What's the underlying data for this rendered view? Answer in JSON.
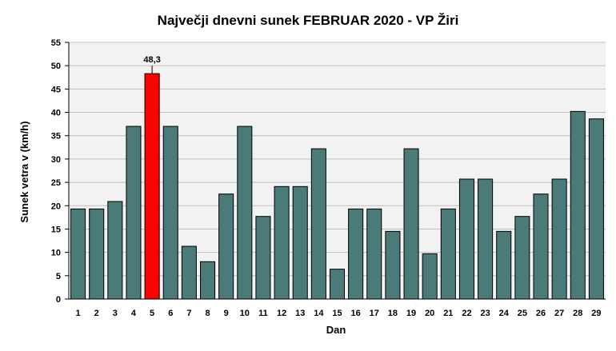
{
  "chart_data": {
    "type": "bar",
    "title": "Največji dnevni sunek FEBRUAR 2020 - VP Žiri",
    "xlabel": "Dan",
    "ylabel": "Sunek vetra  v (km/h)",
    "categories": [
      "1",
      "2",
      "3",
      "4",
      "5",
      "6",
      "7",
      "8",
      "9",
      "10",
      "11",
      "12",
      "13",
      "14",
      "15",
      "16",
      "17",
      "18",
      "19",
      "20",
      "21",
      "22",
      "23",
      "24",
      "25",
      "26",
      "27",
      "28",
      "29"
    ],
    "values": [
      19.3,
      19.3,
      20.9,
      37.0,
      48.3,
      37.0,
      11.3,
      8.0,
      22.5,
      37.0,
      17.7,
      24.1,
      24.1,
      32.2,
      6.4,
      19.3,
      19.3,
      14.5,
      32.2,
      9.7,
      19.3,
      25.7,
      25.7,
      14.5,
      17.7,
      22.5,
      25.7,
      40.2,
      38.6
    ],
    "ylim": [
      0,
      55
    ],
    "yticks": [
      0,
      5,
      10,
      15,
      20,
      25,
      30,
      35,
      40,
      45,
      50,
      55
    ],
    "grid": true,
    "highlight_index": 4,
    "annotations": [
      {
        "index": 4,
        "text": "48,3"
      }
    ],
    "colors": {
      "bar": "#4a7b79",
      "bar_highlight": "#ff0000",
      "bar_edge": "#000000",
      "plot_background": "#f2f2f2",
      "grid": "#c0c0c0"
    }
  }
}
